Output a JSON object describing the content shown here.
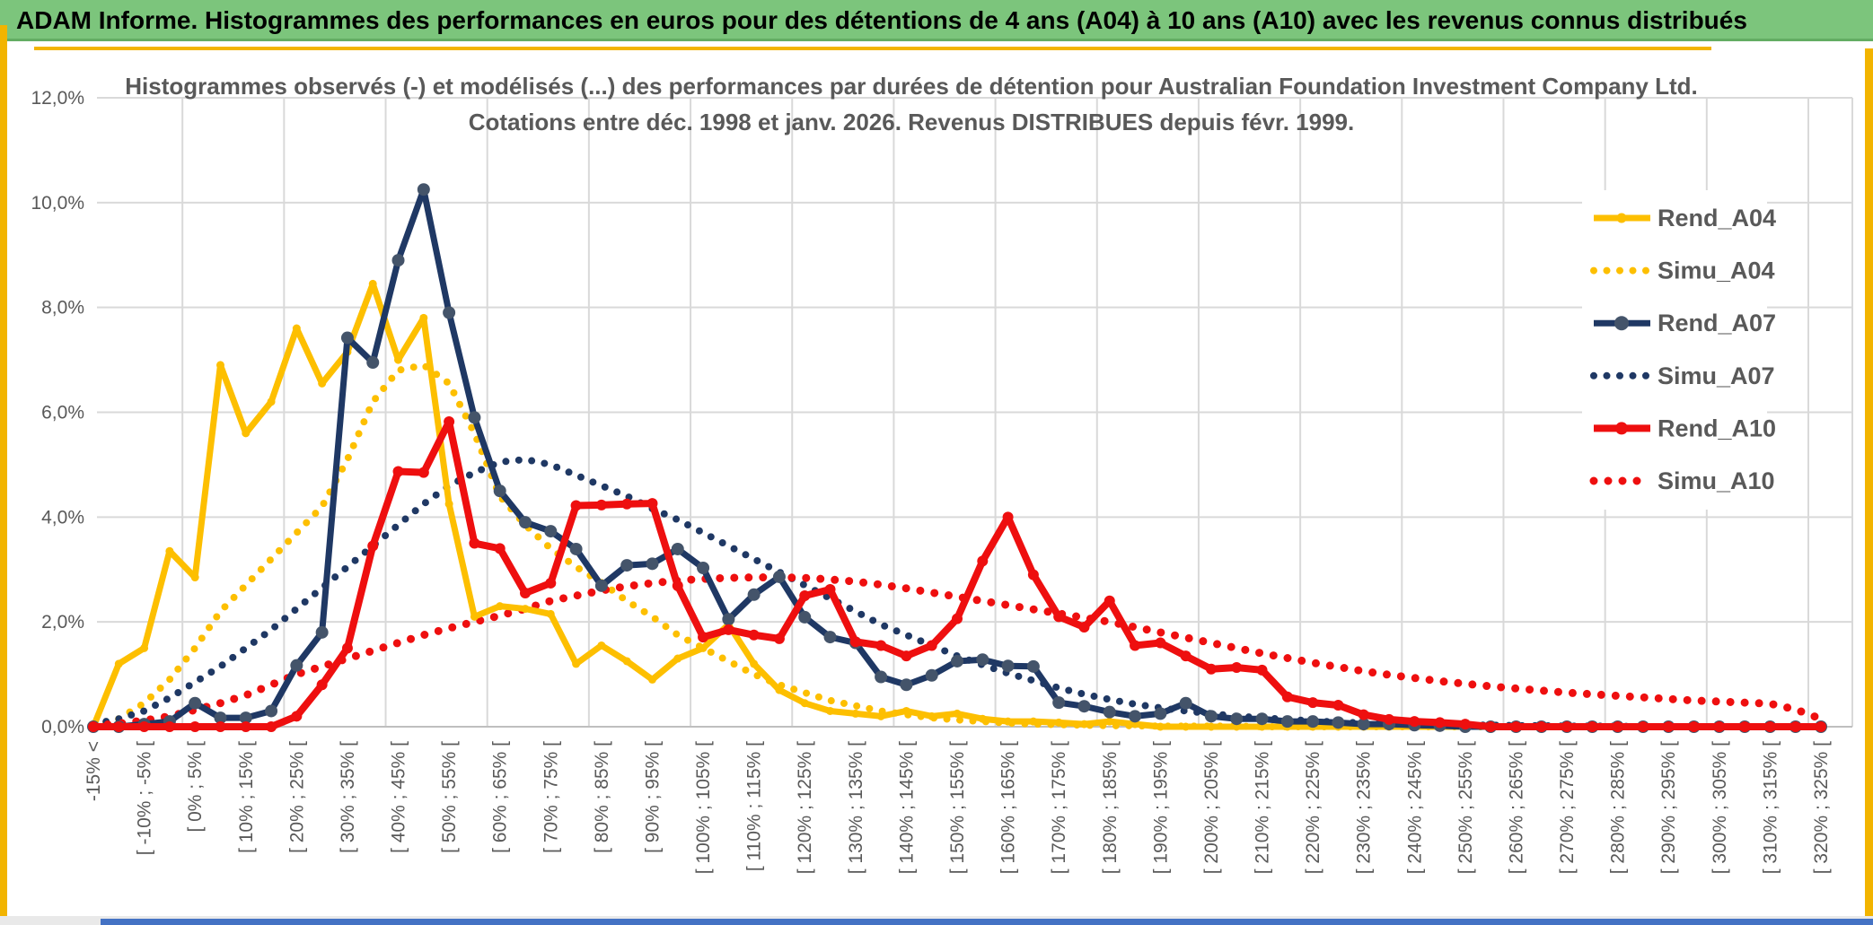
{
  "banner": {
    "title": "ADAM Informe. Histogrammes des performances en euros pour des détentions de 4 ans (A04) à 10 ans (A10) avec les revenus connus distribués"
  },
  "colors": {
    "banner_green": "#7cc57c",
    "accent_gold": "#f2b400",
    "bottom_bar_blue": "#4472c4",
    "grid": "#d9d9d9",
    "axis_text": "#595959",
    "series_gold": "#fdbf00",
    "series_navy": "#1f3864",
    "navy_marker": "#44546a",
    "series_red": "#ee0f0f"
  },
  "chart_data": {
    "type": "line",
    "title_line1": "Histogrammes observés (-) et modélisés (...) des performances par durées de détention pour Australian Foundation Investment Company Ltd.",
    "title_line2": "Cotations entre déc. 1998 et janv. 2026. Revenus DISTRIBUES depuis févr. 1999.",
    "ylim": [
      0,
      12
    ],
    "ytick_labels": [
      "0,0%",
      "2,0%",
      "4,0%",
      "6,0%",
      "8,0%",
      "10,0%",
      "12,0%"
    ],
    "grid": true,
    "legend_position": "right-overlay",
    "n_points": 69,
    "category_step": 2,
    "categories": [
      "-15% <",
      "[ -10% ; -5% [",
      "[ 0% ; 5% [",
      "[ 10% ; 15% [",
      "[ 20% ; 25% [",
      "[ 30% ; 35% [",
      "[ 40% ; 45% [",
      "[ 50% ; 55% [",
      "[ 60% ; 65% [",
      "[ 70% ; 75% [",
      "[ 80% ; 85% [",
      "[ 90% ; 95% [",
      "[ 100% ; 105% [",
      "[ 110% ; 115% [",
      "[ 120% ; 125% [",
      "[ 130% ; 135% [",
      "[ 140% ; 145% [",
      "[ 150% ; 155% [",
      "[ 160% ; 165% [",
      "[ 170% ; 175% [",
      "[ 180% ; 185% [",
      "[ 190% ; 195% [",
      "[ 200% ; 205% [",
      "[ 210% ; 215% [",
      "[ 220% ; 225% [",
      "[ 230% ; 235% [",
      "[ 240% ; 245% [",
      "[ 250% ; 255% [",
      "[ 260% ; 265% [",
      "[ 270% ; 275% [",
      "[ 280% ; 285% [",
      "[ 290% ; 295% [",
      "[ 300% ; 305% [",
      "[ 310% ; 315% [",
      "[ 320% ; 325% ["
    ],
    "series": [
      {
        "name": "Rend_A04",
        "style": "solid",
        "color": "#fdbf00",
        "marker": "#fdbf00",
        "width": 7,
        "marker_r": 4.5,
        "values": [
          0,
          1.2,
          1.5,
          3.35,
          2.85,
          6.9,
          5.6,
          6.2,
          7.6,
          6.55,
          7.15,
          8.45,
          7.0,
          7.8,
          4.25,
          2.1,
          2.3,
          2.25,
          2.15,
          1.2,
          1.55,
          1.25,
          0.9,
          1.3,
          1.5,
          1.95,
          1.2,
          0.7,
          0.45,
          0.3,
          0.25,
          0.2,
          0.3,
          0.2,
          0.25,
          0.15,
          0.1,
          0.1,
          0.08,
          0.05,
          0.1,
          0.05,
          0,
          0,
          0,
          0,
          0,
          0,
          0,
          0,
          0,
          0,
          0,
          0,
          0,
          0,
          0,
          0,
          0,
          0,
          0,
          0,
          0,
          0,
          0,
          0,
          0,
          0,
          0
        ]
      },
      {
        "name": "Simu_A04",
        "style": "dotted",
        "color": "#fdbf00",
        "width": 8,
        "dot_gap": 14.5,
        "values": [
          0.03,
          0.15,
          0.45,
          0.9,
          1.5,
          2.2,
          2.7,
          3.2,
          3.7,
          4.2,
          5.1,
          6.2,
          6.8,
          6.9,
          6.55,
          5.6,
          4.4,
          3.85,
          3.4,
          3.05,
          2.75,
          2.4,
          2.1,
          1.75,
          1.5,
          1.25,
          1.0,
          0.8,
          0.65,
          0.5,
          0.4,
          0.3,
          0.23,
          0.17,
          0.13,
          0.1,
          0.07,
          0.05,
          0.04,
          0.03,
          0.02,
          0.02,
          0.01,
          0.01,
          0.01,
          0.01,
          0,
          0,
          0,
          0,
          0,
          0,
          0,
          0,
          0,
          0,
          0,
          0,
          0,
          0,
          0,
          0,
          0,
          0,
          0,
          0,
          0,
          0,
          0
        ]
      },
      {
        "name": "Rend_A07",
        "style": "solid",
        "color": "#1f3864",
        "marker": "#44546a",
        "width": 7,
        "marker_r": 7,
        "values": [
          0,
          0,
          0.05,
          0.1,
          0.45,
          0.17,
          0.17,
          0.3,
          1.17,
          1.8,
          7.42,
          6.95,
          8.9,
          10.25,
          7.9,
          5.9,
          4.5,
          3.9,
          3.73,
          3.39,
          2.69,
          3.08,
          3.11,
          3.39,
          3.03,
          2.05,
          2.52,
          2.86,
          2.09,
          1.71,
          1.6,
          0.95,
          0.8,
          0.98,
          1.25,
          1.28,
          1.16,
          1.15,
          0.46,
          0.39,
          0.28,
          0.2,
          0.25,
          0.45,
          0.2,
          0.15,
          0.15,
          0.1,
          0.1,
          0.08,
          0.05,
          0.05,
          0.03,
          0.02,
          0,
          0,
          0,
          0,
          0,
          0,
          0,
          0,
          0,
          0,
          0,
          0,
          0,
          0,
          0
        ]
      },
      {
        "name": "Simu_A07",
        "style": "dotted",
        "color": "#1f3864",
        "width": 8,
        "dot_gap": 14.5,
        "values": [
          0.05,
          0.15,
          0.3,
          0.55,
          0.85,
          1.15,
          1.5,
          1.85,
          2.25,
          2.65,
          3.05,
          3.45,
          3.85,
          4.25,
          4.6,
          4.85,
          5.05,
          5.1,
          5.0,
          4.8,
          4.6,
          4.4,
          4.16,
          3.95,
          3.7,
          3.45,
          3.2,
          2.95,
          2.7,
          2.45,
          2.2,
          1.95,
          1.75,
          1.55,
          1.35,
          1.18,
          1.02,
          0.88,
          0.74,
          0.62,
          0.52,
          0.43,
          0.36,
          0.3,
          0.25,
          0.2,
          0.17,
          0.14,
          0.11,
          0.09,
          0.07,
          0.06,
          0.05,
          0.04,
          0.03,
          0.03,
          0.02,
          0.02,
          0.01,
          0.01,
          0.01,
          0,
          0,
          0,
          0,
          0,
          0,
          0,
          0
        ]
      },
      {
        "name": "Rend_A10",
        "style": "solid",
        "color": "#ee0f0f",
        "marker": "#ee0f0f",
        "width": 8,
        "marker_r": 6,
        "values": [
          0,
          0,
          0,
          0,
          0,
          0,
          0,
          0,
          0.2,
          0.8,
          1.5,
          3.45,
          4.87,
          4.85,
          5.82,
          3.5,
          3.4,
          2.55,
          2.74,
          4.22,
          4.23,
          4.25,
          4.26,
          2.69,
          1.71,
          1.85,
          1.75,
          1.68,
          2.5,
          2.62,
          1.62,
          1.55,
          1.35,
          1.55,
          2.06,
          3.16,
          4.0,
          2.9,
          2.1,
          1.9,
          2.4,
          1.55,
          1.6,
          1.35,
          1.1,
          1.13,
          1.08,
          0.57,
          0.46,
          0.41,
          0.23,
          0.14,
          0.1,
          0.08,
          0.05,
          0,
          0,
          0,
          0,
          0,
          0,
          0,
          0,
          0,
          0,
          0,
          0,
          0,
          0
        ]
      },
      {
        "name": "Simu_A10",
        "style": "dotted",
        "color": "#ee0f0f",
        "width": 9,
        "dot_gap": 16,
        "values": [
          0.02,
          0.06,
          0.12,
          0.2,
          0.32,
          0.45,
          0.6,
          0.8,
          1.0,
          1.15,
          1.3,
          1.45,
          1.6,
          1.75,
          1.88,
          2.0,
          2.12,
          2.25,
          2.4,
          2.5,
          2.6,
          2.68,
          2.74,
          2.79,
          2.82,
          2.84,
          2.85,
          2.85,
          2.84,
          2.81,
          2.77,
          2.71,
          2.64,
          2.56,
          2.48,
          2.4,
          2.32,
          2.24,
          2.16,
          2.08,
          2.0,
          1.9,
          1.8,
          1.7,
          1.6,
          1.5,
          1.4,
          1.31,
          1.22,
          1.14,
          1.06,
          0.99,
          0.93,
          0.87,
          0.82,
          0.77,
          0.73,
          0.69,
          0.65,
          0.62,
          0.59,
          0.56,
          0.53,
          0.5,
          0.48,
          0.46,
          0.44,
          0.33,
          0.15
        ]
      }
    ],
    "legend": [
      "Rend_A04",
      "Simu_A04",
      "Rend_A07",
      "Simu_A07",
      "Rend_A10",
      "Simu_A10"
    ]
  }
}
